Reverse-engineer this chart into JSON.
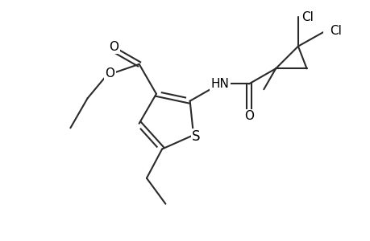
{
  "bg_color": "#ffffff",
  "line_color": "#2a2a2a",
  "text_color": "#000000",
  "line_width": 1.5,
  "font_size": 11,
  "figsize": [
    4.6,
    3.0
  ],
  "dpi": 100,
  "xlim": [
    -3.5,
    4.5
  ],
  "ylim": [
    -3.5,
    3.5
  ]
}
